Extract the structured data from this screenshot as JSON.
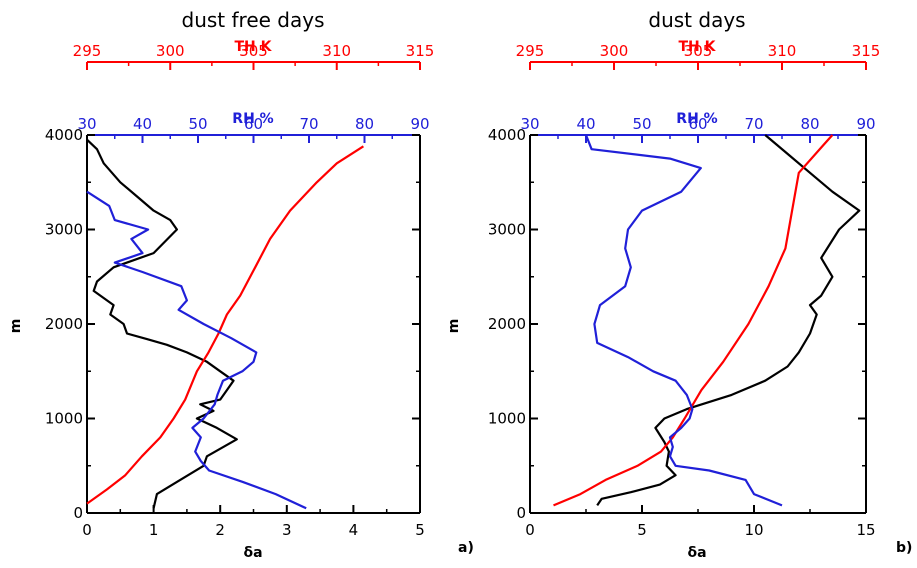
{
  "colors": {
    "black": "#000000",
    "red": "#ff0000",
    "blue": "#2020d8"
  },
  "chart_data": [
    {
      "type": "line",
      "title": "dust free days",
      "panel_label": "a)",
      "ylabel": "m",
      "ylim": [
        0,
        4000
      ],
      "yticks": [
        0,
        1000,
        2000,
        3000,
        4000
      ],
      "axes": {
        "bottom": {
          "label": "δa",
          "range": [
            0,
            5
          ],
          "ticks": [
            0,
            1,
            2,
            3,
            4,
            5
          ],
          "color": "#000000"
        },
        "top_th": {
          "label": "TH K",
          "range": [
            295,
            315
          ],
          "ticks": [
            295,
            300,
            305,
            310,
            315
          ],
          "color": "#ff0000"
        },
        "top_rh": {
          "label": "RH %",
          "range": [
            30,
            90
          ],
          "ticks": [
            30,
            40,
            50,
            60,
            70,
            80,
            90
          ],
          "color": "#2020d8"
        }
      },
      "series": [
        {
          "axis": "bottom",
          "color": "#000000",
          "points": [
            [
              1.0,
              50
            ],
            [
              1.05,
              200
            ],
            [
              1.4,
              350
            ],
            [
              1.75,
              500
            ],
            [
              1.8,
              600
            ],
            [
              2.25,
              780
            ],
            [
              1.95,
              900
            ],
            [
              1.65,
              1000
            ],
            [
              1.9,
              1080
            ],
            [
              1.7,
              1150
            ],
            [
              2.0,
              1200
            ],
            [
              2.1,
              1300
            ],
            [
              2.2,
              1400
            ],
            [
              2.0,
              1500
            ],
            [
              1.8,
              1600
            ],
            [
              1.5,
              1700
            ],
            [
              1.2,
              1780
            ],
            [
              0.9,
              1840
            ],
            [
              0.6,
              1900
            ],
            [
              0.55,
              2000
            ],
            [
              0.35,
              2100
            ],
            [
              0.4,
              2200
            ],
            [
              0.1,
              2350
            ],
            [
              0.15,
              2450
            ],
            [
              0.4,
              2600
            ],
            [
              1.0,
              2750
            ],
            [
              1.35,
              3000
            ],
            [
              1.25,
              3100
            ],
            [
              1.0,
              3200
            ],
            [
              0.75,
              3350
            ],
            [
              0.5,
              3500
            ],
            [
              0.25,
              3700
            ],
            [
              0.15,
              3850
            ],
            [
              0.0,
              3950
            ]
          ]
        },
        {
          "axis": "top_th",
          "color": "#ff0000",
          "points": [
            [
              295.0,
              100
            ],
            [
              296.2,
              250
            ],
            [
              297.3,
              400
            ],
            [
              298.3,
              600
            ],
            [
              299.4,
              800
            ],
            [
              300.2,
              1000
            ],
            [
              300.9,
              1200
            ],
            [
              301.6,
              1500
            ],
            [
              302.3,
              1700
            ],
            [
              302.9,
              1900
            ],
            [
              303.4,
              2100
            ],
            [
              304.2,
              2300
            ],
            [
              305.1,
              2600
            ],
            [
              306.0,
              2900
            ],
            [
              307.2,
              3200
            ],
            [
              308.8,
              3500
            ],
            [
              310.0,
              3700
            ],
            [
              311.6,
              3880
            ]
          ]
        },
        {
          "axis": "top_rh",
          "color": "#2020d8",
          "points": [
            [
              69.5,
              50
            ],
            [
              64.0,
              200
            ],
            [
              58.0,
              330
            ],
            [
              52.0,
              450
            ],
            [
              50.5,
              550
            ],
            [
              49.5,
              650
            ],
            [
              50.5,
              800
            ],
            [
              49.0,
              900
            ],
            [
              51.0,
              1000
            ],
            [
              53.0,
              1150
            ],
            [
              53.5,
              1250
            ],
            [
              54.5,
              1400
            ],
            [
              58.0,
              1500
            ],
            [
              60.0,
              1600
            ],
            [
              60.5,
              1700
            ],
            [
              56.0,
              1850
            ],
            [
              51.0,
              2000
            ],
            [
              46.5,
              2150
            ],
            [
              48.0,
              2250
            ],
            [
              47.0,
              2400
            ],
            [
              40.0,
              2550
            ],
            [
              35.0,
              2650
            ],
            [
              40.0,
              2750
            ],
            [
              38.0,
              2900
            ],
            [
              41.0,
              3000
            ],
            [
              35.0,
              3100
            ],
            [
              34.0,
              3250
            ],
            [
              30.0,
              3400
            ]
          ]
        }
      ]
    },
    {
      "type": "line",
      "title": "dust days",
      "panel_label": "b)",
      "ylabel": "m",
      "ylim": [
        0,
        4000
      ],
      "yticks": [
        0,
        1000,
        2000,
        3000,
        4000
      ],
      "axes": {
        "bottom": {
          "label": "δa",
          "range": [
            0,
            15
          ],
          "ticks": [
            0,
            5,
            10,
            15
          ],
          "color": "#000000"
        },
        "top_th": {
          "label": "TH K",
          "range": [
            295,
            315
          ],
          "ticks": [
            295,
            300,
            305,
            310,
            315
          ],
          "color": "#ff0000"
        },
        "top_rh": {
          "label": "RH %",
          "range": [
            30,
            90
          ],
          "ticks": [
            30,
            40,
            50,
            60,
            70,
            80,
            90
          ],
          "color": "#2020d8"
        }
      },
      "series": [
        {
          "axis": "bottom",
          "color": "#000000",
          "points": [
            [
              3.0,
              80
            ],
            [
              3.2,
              150
            ],
            [
              4.5,
              220
            ],
            [
              5.8,
              300
            ],
            [
              6.5,
              400
            ],
            [
              6.1,
              500
            ],
            [
              6.2,
              650
            ],
            [
              6.0,
              750
            ],
            [
              5.6,
              900
            ],
            [
              6.0,
              1000
            ],
            [
              7.0,
              1100
            ],
            [
              9.0,
              1250
            ],
            [
              10.5,
              1400
            ],
            [
              11.5,
              1550
            ],
            [
              12.0,
              1700
            ],
            [
              12.5,
              1900
            ],
            [
              12.8,
              2100
            ],
            [
              12.5,
              2200
            ],
            [
              13.0,
              2300
            ],
            [
              13.5,
              2500
            ],
            [
              13.0,
              2700
            ],
            [
              13.8,
              3000
            ],
            [
              14.7,
              3200
            ],
            [
              13.5,
              3400
            ],
            [
              12.5,
              3600
            ],
            [
              11.5,
              3800
            ],
            [
              10.5,
              4000
            ]
          ]
        },
        {
          "axis": "top_th",
          "color": "#ff0000",
          "points": [
            [
              296.4,
              80
            ],
            [
              298.0,
              200
            ],
            [
              299.5,
              350
            ],
            [
              301.4,
              500
            ],
            [
              302.8,
              650
            ],
            [
              303.5,
              800
            ],
            [
              304.2,
              1000
            ],
            [
              305.2,
              1300
            ],
            [
              306.5,
              1600
            ],
            [
              308.0,
              2000
            ],
            [
              309.2,
              2400
            ],
            [
              310.2,
              2800
            ],
            [
              310.6,
              3200
            ],
            [
              311.0,
              3600
            ],
            [
              312.5,
              3900
            ],
            [
              313.0,
              4000
            ]
          ]
        },
        {
          "axis": "top_rh",
          "color": "#2020d8",
          "points": [
            [
              75.0,
              80
            ],
            [
              70.0,
              200
            ],
            [
              68.5,
              350
            ],
            [
              62.0,
              450
            ],
            [
              56.0,
              500
            ],
            [
              55.0,
              600
            ],
            [
              55.5,
              700
            ],
            [
              55.0,
              800
            ],
            [
              57.0,
              900
            ],
            [
              58.5,
              1000
            ],
            [
              59.0,
              1100
            ],
            [
              58.0,
              1250
            ],
            [
              56.0,
              1400
            ],
            [
              52.0,
              1500
            ],
            [
              47.5,
              1650
            ],
            [
              42.0,
              1800
            ],
            [
              41.5,
              2000
            ],
            [
              42.5,
              2200
            ],
            [
              47.0,
              2400
            ],
            [
              48.0,
              2600
            ],
            [
              47.0,
              2800
            ],
            [
              47.5,
              3000
            ],
            [
              50.0,
              3200
            ],
            [
              57.0,
              3400
            ],
            [
              60.5,
              3650
            ],
            [
              55.0,
              3750
            ],
            [
              41.0,
              3850
            ],
            [
              40.0,
              4000
            ]
          ]
        }
      ]
    }
  ]
}
